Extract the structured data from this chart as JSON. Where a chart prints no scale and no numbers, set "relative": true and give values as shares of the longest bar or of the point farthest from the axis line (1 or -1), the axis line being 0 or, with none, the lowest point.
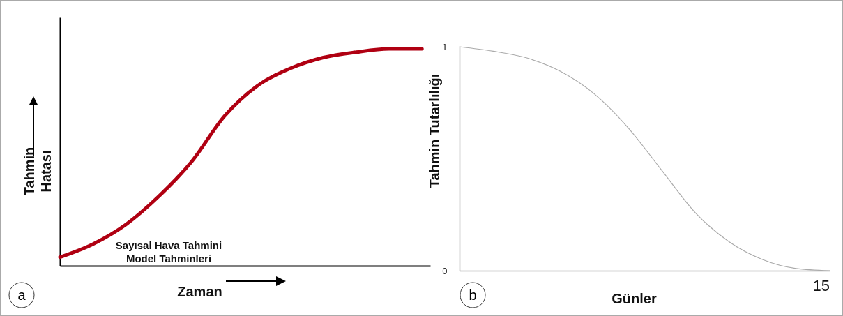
{
  "chart_data": [
    {
      "type": "line",
      "title": "a",
      "xlabel": "Zaman",
      "ylabel": "Tahmin Hatası",
      "relative": true,
      "categories": [
        null,
        null,
        null,
        null,
        null,
        null,
        null,
        null,
        null,
        null,
        null,
        null
      ],
      "series": [
        {
          "color": "#b00012",
          "values": [
            0.04,
            0.1,
            0.19,
            0.32,
            0.48,
            0.69,
            0.83,
            0.91,
            0.96,
            0.985,
            1.0,
            1.0
          ]
        }
      ],
      "annotations": [
        "Sayısal Hava Tahmini",
        "Model Tahminleri"
      ]
    },
    {
      "type": "line",
      "title": "b",
      "xlabel": "Günler",
      "ylabel": "Tahmin Tutarlılığı",
      "ylim": [
        0,
        1
      ],
      "yticks": [
        0,
        1
      ],
      "categories": [
        null,
        null,
        null,
        null,
        null,
        null,
        null,
        null,
        null,
        null,
        null,
        null
      ],
      "series": [
        {
          "color": "#aaaaaa",
          "values": [
            1,
            0.98,
            0.95,
            0.89,
            0.79,
            0.64,
            0.45,
            0.26,
            0.13,
            0.05,
            0.01,
            0
          ]
        }
      ],
      "annotations": [
        "15"
      ]
    }
  ]
}
